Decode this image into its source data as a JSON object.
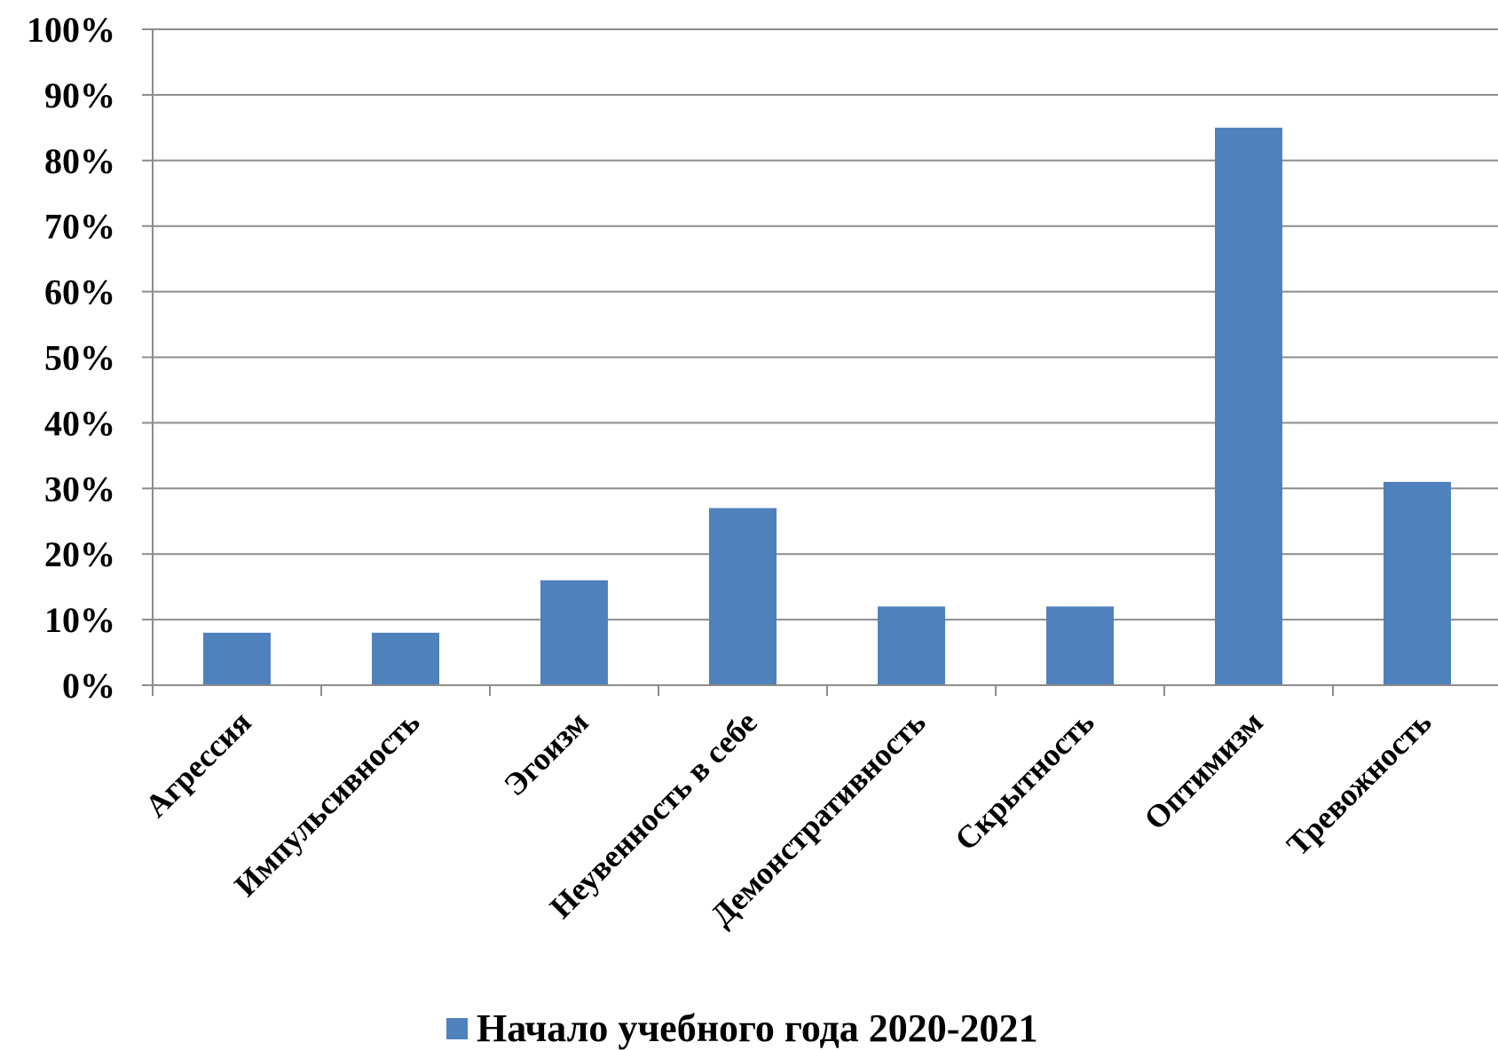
{
  "chart_data": {
    "type": "bar",
    "categories": [
      "Агрессия",
      "Импульсивность",
      "Эгоизм",
      "Неувенность в себе",
      "Демонстративность",
      "Скрытность",
      "Оптимизм",
      "Тревожность"
    ],
    "series": [
      {
        "name": "Начало учебного года 2020-2021",
        "values": [
          8,
          8,
          16,
          27,
          12,
          12,
          85,
          31
        ],
        "color": "#4F81BD"
      }
    ],
    "y_ticks": [
      "0%",
      "10%",
      "20%",
      "30%",
      "40%",
      "50%",
      "60%",
      "70%",
      "80%",
      "90%",
      "100%"
    ],
    "ylim": [
      0,
      100
    ],
    "grid": true,
    "legend_position": "bottom"
  }
}
